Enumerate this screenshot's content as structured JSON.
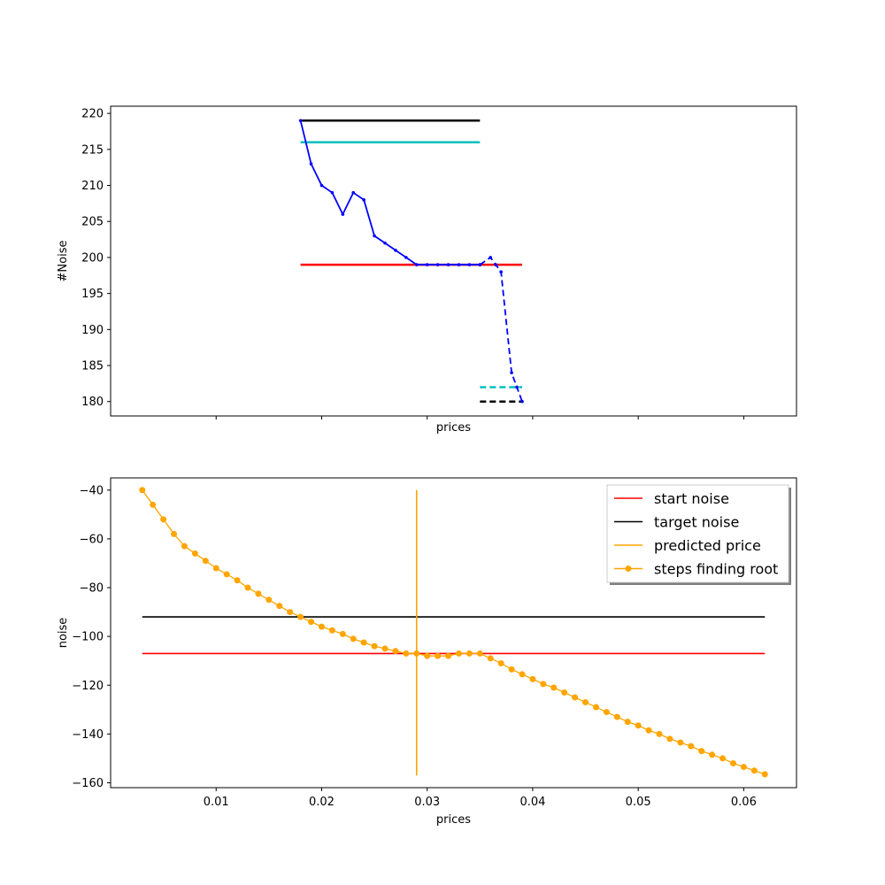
{
  "chart_data": [
    {
      "type": "line",
      "xlabel": "prices",
      "ylabel": "#Noise",
      "xlim": [
        0.0,
        0.065
      ],
      "ylim": [
        178,
        221
      ],
      "yticks": [
        180,
        185,
        190,
        195,
        200,
        205,
        210,
        215,
        220
      ],
      "xticks": [
        0.01,
        0.02,
        0.03,
        0.04,
        0.05,
        0.06
      ],
      "xtick_labels_visible": false,
      "grid": false,
      "series": [
        {
          "style": "solid",
          "color": "#0000ff",
          "marker": "dot",
          "x": [
            0.018,
            0.019,
            0.02,
            0.021,
            0.022,
            0.023,
            0.024,
            0.025,
            0.026,
            0.027,
            0.028,
            0.029,
            0.03,
            0.031,
            0.032,
            0.033,
            0.034,
            0.035
          ],
          "y": [
            219,
            213,
            210,
            209,
            206,
            209,
            208,
            203,
            202,
            201,
            200,
            199,
            199,
            199,
            199,
            199,
            199,
            199
          ]
        },
        {
          "style": "dashed",
          "color": "#0000ff",
          "marker": "dot",
          "x": [
            0.035,
            0.036,
            0.0365,
            0.037,
            0.038,
            0.0385,
            0.039
          ],
          "y": [
            199,
            200,
            199,
            198,
            184,
            182,
            180
          ]
        }
      ],
      "hlines": [
        {
          "y": 219,
          "xmin": 0.018,
          "xmax": 0.035,
          "color": "#000000",
          "style": "solid"
        },
        {
          "y": 216,
          "xmin": 0.018,
          "xmax": 0.035,
          "color": "#00bfbf",
          "style": "solid"
        },
        {
          "y": 199,
          "xmin": 0.018,
          "xmax": 0.039,
          "color": "#ff0000",
          "style": "solid"
        },
        {
          "y": 182,
          "xmin": 0.035,
          "xmax": 0.039,
          "color": "#00bfbf",
          "style": "dashed"
        },
        {
          "y": 180,
          "xmin": 0.035,
          "xmax": 0.039,
          "color": "#000000",
          "style": "dashed"
        }
      ]
    },
    {
      "type": "line",
      "xlabel": "prices",
      "ylabel": "noise",
      "xlim": [
        0.0,
        0.065
      ],
      "ylim": [
        -162,
        -35
      ],
      "yticks": [
        -40,
        -60,
        -80,
        -100,
        -120,
        -140,
        -160
      ],
      "xticks": [
        0.01,
        0.02,
        0.03,
        0.04,
        0.05,
        0.06
      ],
      "grid": false,
      "legend": {
        "placement": "top-right",
        "entries": [
          {
            "label": "start noise",
            "color": "#ff0000",
            "marker": false
          },
          {
            "label": "target noise",
            "color": "#000000",
            "marker": false
          },
          {
            "label": "predicted price",
            "color": "#ffa500",
            "marker": false
          },
          {
            "label": "steps finding root",
            "color": "#ffa500",
            "marker": true
          }
        ]
      },
      "hlines": [
        {
          "y": -107,
          "xmin": 0.003,
          "xmax": 0.062,
          "color": "#ff0000"
        },
        {
          "y": -92,
          "xmin": 0.003,
          "xmax": 0.062,
          "color": "#000000"
        }
      ],
      "vline": {
        "x": 0.029,
        "ymin": -157,
        "ymax": -40,
        "color": "#ffa500"
      },
      "steps": {
        "color": "#ffa500",
        "x": [
          0.003,
          0.004,
          0.005,
          0.006,
          0.007,
          0.008,
          0.009,
          0.01,
          0.011,
          0.012,
          0.013,
          0.014,
          0.015,
          0.016,
          0.017,
          0.018,
          0.019,
          0.02,
          0.021,
          0.022,
          0.023,
          0.024,
          0.025,
          0.026,
          0.027,
          0.028,
          0.029,
          0.03,
          0.031,
          0.032,
          0.033,
          0.034,
          0.035,
          0.036,
          0.037,
          0.038,
          0.039,
          0.04,
          0.041,
          0.042,
          0.043,
          0.044,
          0.045,
          0.046,
          0.047,
          0.048,
          0.049,
          0.05,
          0.051,
          0.052,
          0.053,
          0.054,
          0.055,
          0.056,
          0.057,
          0.058,
          0.059,
          0.06,
          0.061,
          0.062
        ],
        "y": [
          -40,
          -46,
          -52,
          -58,
          -63,
          -66,
          -69,
          -72,
          -74.5,
          -77,
          -80,
          -82.5,
          -85,
          -87.5,
          -90,
          -92,
          -94,
          -96,
          -97.5,
          -99,
          -101,
          -102.5,
          -104,
          -105,
          -106,
          -107,
          -107,
          -108,
          -108,
          -108,
          -107,
          -107,
          -107,
          -109,
          -111,
          -113.5,
          -115.5,
          -117.5,
          -119.5,
          -121,
          -123,
          -125,
          -127,
          -129,
          -131,
          -133,
          -135,
          -136.5,
          -138.5,
          -140,
          -142,
          -143.5,
          -145,
          -147,
          -148.5,
          -150,
          -152,
          -153.5,
          -155,
          -156.5
        ]
      }
    }
  ]
}
